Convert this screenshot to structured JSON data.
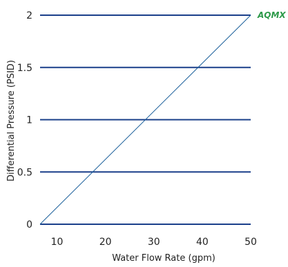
{
  "chart_data": {
    "type": "line",
    "title": "",
    "xlabel": "Water Flow Rate (gpm)",
    "ylabel": "Differential Pressure (PSID)",
    "x_ticks": [
      10,
      20,
      30,
      40,
      50
    ],
    "y_ticks": [
      0,
      0.5,
      1,
      1.5,
      2
    ],
    "y_tick_labels": [
      "0",
      "0.5",
      "1",
      "1.5",
      "2"
    ],
    "xlim": [
      6.5,
      50
    ],
    "ylim": [
      0,
      2
    ],
    "grid": "horizontal",
    "series": [
      {
        "name": "AQMX",
        "x": [
          6.5,
          50
        ],
        "y": [
          0,
          2
        ]
      }
    ],
    "colors": {
      "grid": "#1a3f8a",
      "line": "#1a5f9a",
      "label": "#2e9a4a",
      "text": "#222222"
    }
  }
}
